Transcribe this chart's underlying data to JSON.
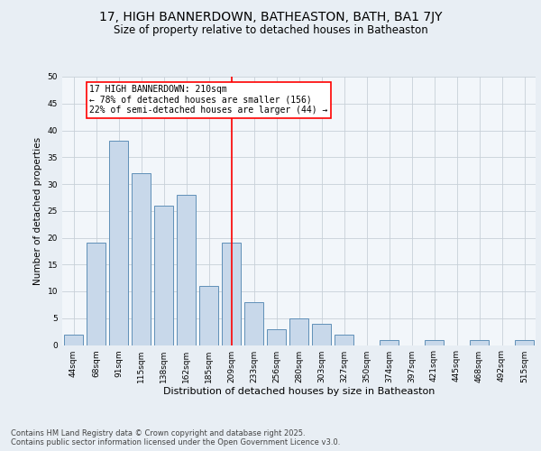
{
  "title": "17, HIGH BANNERDOWN, BATHEASTON, BATH, BA1 7JY",
  "subtitle": "Size of property relative to detached houses in Batheaston",
  "xlabel": "Distribution of detached houses by size in Batheaston",
  "ylabel": "Number of detached properties",
  "categories": [
    "44sqm",
    "68sqm",
    "91sqm",
    "115sqm",
    "138sqm",
    "162sqm",
    "185sqm",
    "209sqm",
    "233sqm",
    "256sqm",
    "280sqm",
    "303sqm",
    "327sqm",
    "350sqm",
    "374sqm",
    "397sqm",
    "421sqm",
    "445sqm",
    "468sqm",
    "492sqm",
    "515sqm"
  ],
  "values": [
    2,
    19,
    38,
    32,
    26,
    28,
    11,
    19,
    8,
    3,
    5,
    4,
    2,
    0,
    1,
    0,
    1,
    0,
    1,
    0,
    1
  ],
  "bar_color": "#c8d8ea",
  "bar_edge_color": "#6090b8",
  "vline_x_index": 7,
  "vline_color": "red",
  "annotation_text": "17 HIGH BANNERDOWN: 210sqm\n← 78% of detached houses are smaller (156)\n22% of semi-detached houses are larger (44) →",
  "annotation_box_color": "white",
  "annotation_box_edge_color": "red",
  "ylim": [
    0,
    50
  ],
  "yticks": [
    0,
    5,
    10,
    15,
    20,
    25,
    30,
    35,
    40,
    45,
    50
  ],
  "bg_color": "#e8eef4",
  "plot_bg_color": "#f2f6fa",
  "grid_color": "#c8d0d8",
  "footer": "Contains HM Land Registry data © Crown copyright and database right 2025.\nContains public sector information licensed under the Open Government Licence v3.0.",
  "title_fontsize": 10,
  "subtitle_fontsize": 8.5,
  "xlabel_fontsize": 8,
  "ylabel_fontsize": 7.5,
  "tick_fontsize": 6.5,
  "footer_fontsize": 6,
  "annot_fontsize": 7
}
